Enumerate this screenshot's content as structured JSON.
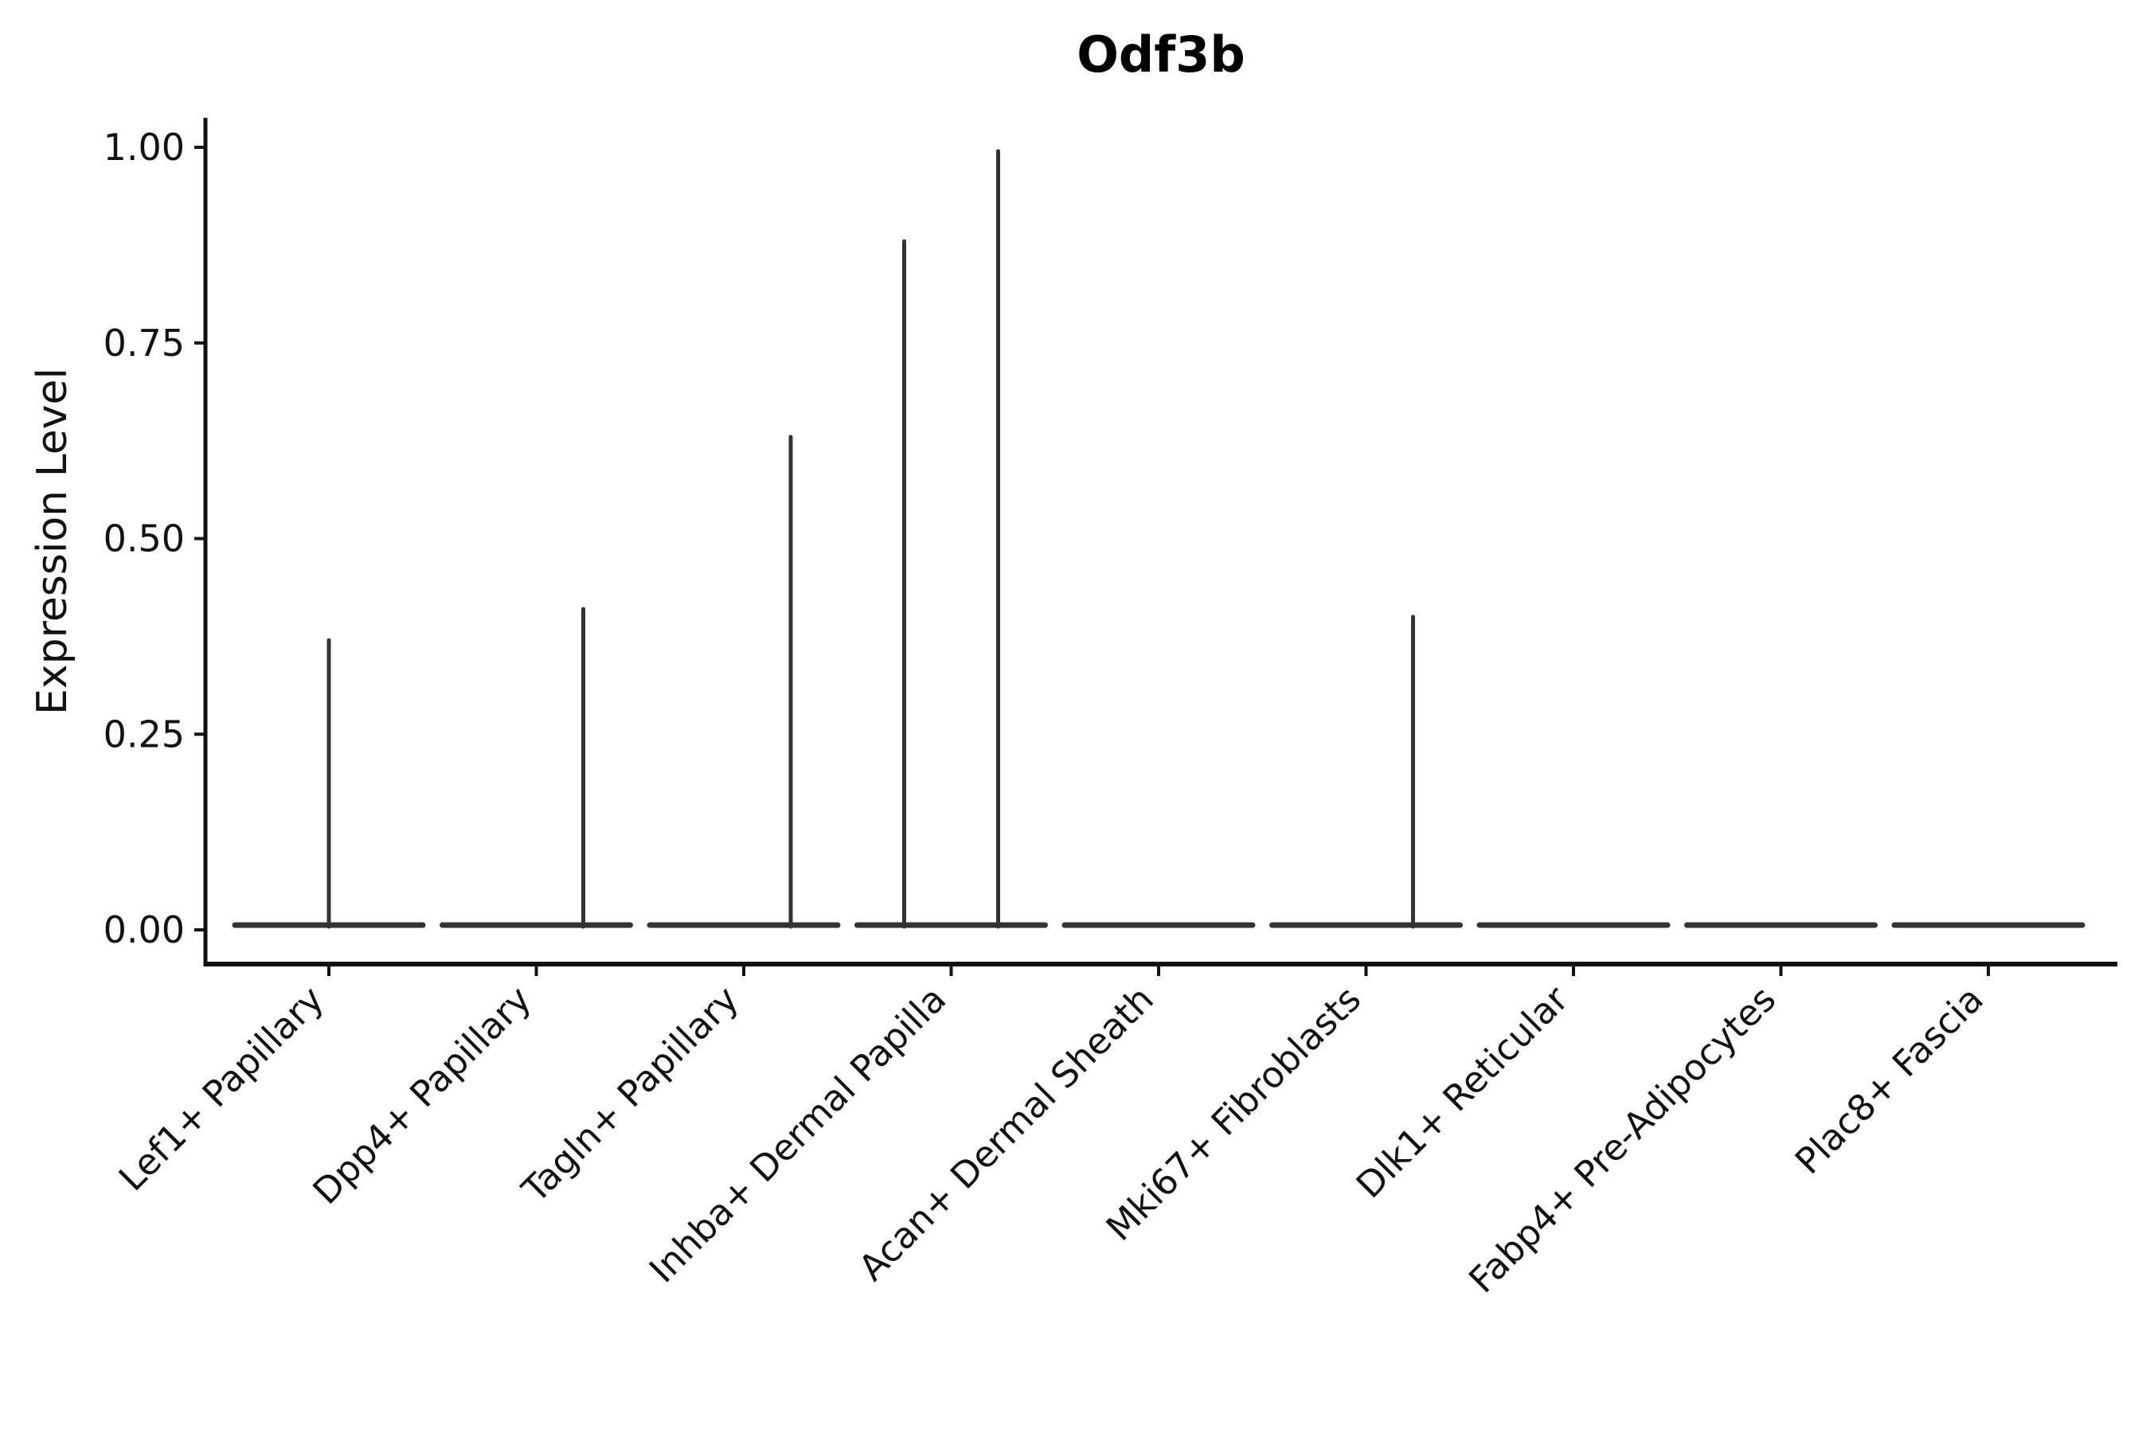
{
  "chart_data": {
    "type": "violin",
    "title": "Odf3b",
    "ylabel": "Expression Level",
    "xlabel": "",
    "ylim": [
      0,
      1.0
    ],
    "grid": false,
    "legend_position": "none",
    "yticks": [
      {
        "value": 1.0,
        "label": "1.00"
      },
      {
        "value": 0.75,
        "label": "0.75"
      },
      {
        "value": 0.5,
        "label": "0.50"
      },
      {
        "value": 0.25,
        "label": "0.25"
      },
      {
        "value": 0.0,
        "label": "0.00"
      }
    ],
    "categories": [
      "Lef1+ Papillary",
      "Dpp4+ Papillary",
      "Tagln+ Papillary",
      "Inhba+ Dermal Papilla",
      "Acan+ Dermal Sheath",
      "Mki67+ Fibroblasts",
      "Dlk1+ Reticular",
      "Fabp4+ Pre-Adipocytes",
      "Plac8+ Fascia"
    ],
    "violins": [
      {
        "category": "Lef1+ Papillary",
        "base_value": 0.0,
        "spikes": [
          {
            "offset_frac": 0.0,
            "value": 0.37
          }
        ]
      },
      {
        "category": "Dpp4+ Papillary",
        "base_value": 0.0,
        "spikes": [
          {
            "offset_frac": 0.25,
            "value": 0.41
          }
        ]
      },
      {
        "category": "Tagln+ Papillary",
        "base_value": 0.0,
        "spikes": [
          {
            "offset_frac": 0.25,
            "value": 0.63
          }
        ]
      },
      {
        "category": "Inhba+ Dermal Papilla",
        "base_value": 0.0,
        "spikes": [
          {
            "offset_frac": -0.25,
            "value": 0.88
          },
          {
            "offset_frac": 0.25,
            "value": 0.995
          }
        ]
      },
      {
        "category": "Acan+ Dermal Sheath",
        "base_value": 0.0,
        "spikes": []
      },
      {
        "category": "Mki67+ Fibroblasts",
        "base_value": 0.0,
        "spikes": [
          {
            "offset_frac": 0.25,
            "value": 0.4
          }
        ]
      },
      {
        "category": "Dlk1+ Reticular",
        "base_value": 0.0,
        "spikes": []
      },
      {
        "category": "Fabp4+ Pre-Adipocytes",
        "base_value": 0.0,
        "spikes": []
      },
      {
        "category": "Plac8+ Fascia",
        "base_value": 0.0,
        "spikes": []
      }
    ],
    "colors": {
      "axis": "#111111",
      "violin": "#333333",
      "spike": "#333333",
      "tick_text": "#111111",
      "title_text": "#000000",
      "background": "#ffffff"
    }
  }
}
